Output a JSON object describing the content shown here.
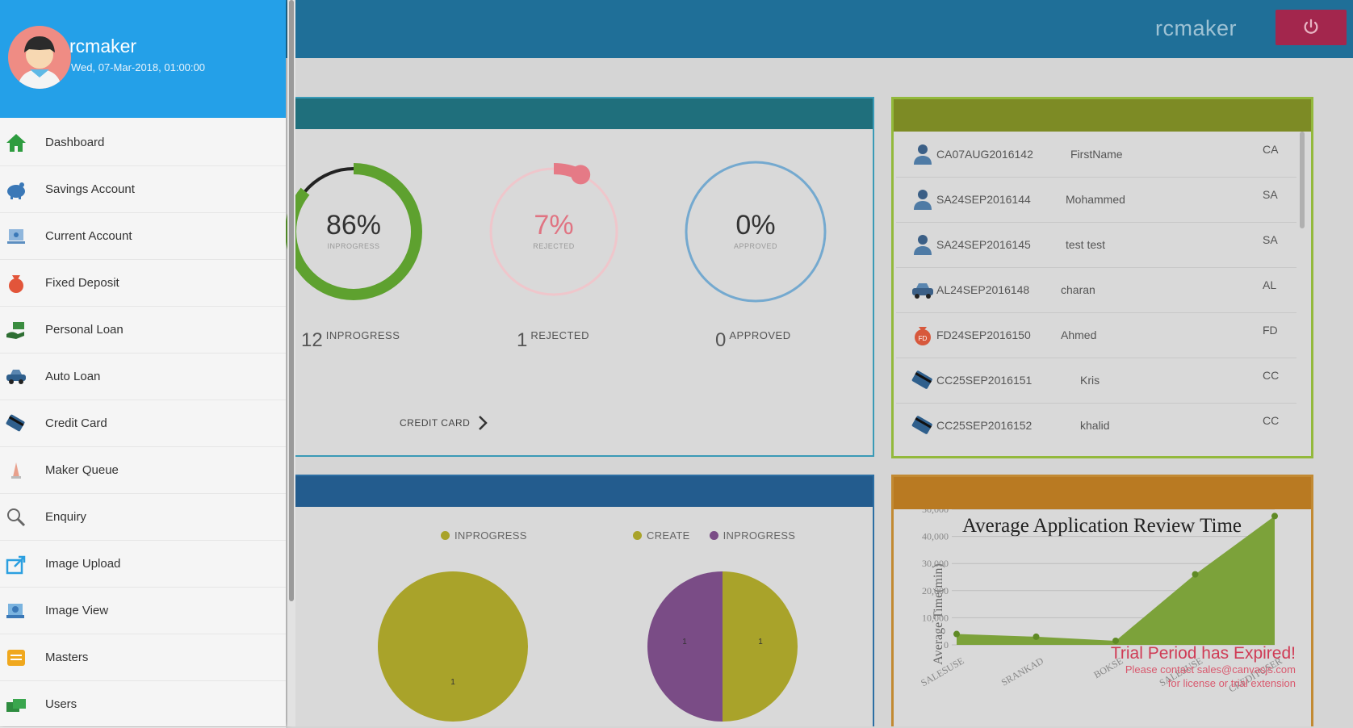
{
  "topbar": {
    "username": "rcmaker",
    "power_icon": "power-icon",
    "colors": {
      "bar": "#1f6f98",
      "power": "#a3264d"
    }
  },
  "sidebar": {
    "user": {
      "name": "rcmaker",
      "datetime": "Wed, 07-Mar-2018, 01:00:00"
    },
    "items": [
      {
        "label": "Dashboard",
        "icon": "home-icon"
      },
      {
        "label": "Savings Account",
        "icon": "piggy-bank-icon"
      },
      {
        "label": "Current Account",
        "icon": "current-account-icon"
      },
      {
        "label": "Fixed Deposit",
        "icon": "money-bag-icon"
      },
      {
        "label": "Personal Loan",
        "icon": "hand-money-icon"
      },
      {
        "label": "Auto Loan",
        "icon": "car-icon"
      },
      {
        "label": "Credit Card",
        "icon": "credit-card-icon"
      },
      {
        "label": "Maker Queue",
        "icon": "queue-icon"
      },
      {
        "label": "Enquiry",
        "icon": "magnifier-icon"
      },
      {
        "label": "Image Upload",
        "icon": "upload-icon"
      },
      {
        "label": "Image View",
        "icon": "image-view-icon"
      },
      {
        "label": "Masters",
        "icon": "masters-icon"
      },
      {
        "label": "Users",
        "icon": "users-icon"
      }
    ]
  },
  "status": {
    "gauges": [
      {
        "percent": "86%",
        "sub": "INPROGRESS",
        "count": "12",
        "count_label": "INPROGRESS",
        "value": 0.86,
        "color": "#5ea12f"
      },
      {
        "percent": "7%",
        "sub": "REJECTED",
        "count": "1",
        "count_label": "REJECTED",
        "value": 0.07,
        "color": "#e57a86"
      },
      {
        "percent": "0%",
        "sub": "APPROVED",
        "count": "0",
        "count_label": "APPROVED",
        "value": 0,
        "color": "#74a9cf"
      }
    ],
    "link_label": "CREDIT CARD"
  },
  "applications": [
    {
      "id": "CA07AUG2016142",
      "name": "FirstName",
      "type": "CA",
      "icon": "user-icon"
    },
    {
      "id": "SA24SEP2016144",
      "name": "Mohammed",
      "type": "SA",
      "icon": "user-icon"
    },
    {
      "id": "SA24SEP2016145",
      "name": "test test",
      "type": "SA",
      "icon": "user-icon"
    },
    {
      "id": "AL24SEP2016148",
      "name": "charan",
      "type": "AL",
      "icon": "car-icon"
    },
    {
      "id": "FD24SEP2016150",
      "name": "Ahmed",
      "type": "FD",
      "icon": "fd-bag-icon"
    },
    {
      "id": "CC25SEP2016151",
      "name": "Kris",
      "type": "CC",
      "icon": "credit-card-icon"
    },
    {
      "id": "CC25SEP2016152",
      "name": "khalid",
      "type": "CC",
      "icon": "credit-card-icon"
    }
  ],
  "pies": {
    "left": {
      "legend": [
        {
          "label": "INPROGRESS",
          "color": "#a9a32a"
        }
      ],
      "label": "1"
    },
    "right": {
      "legend": [
        {
          "label": "CREATE",
          "color": "#a9a32a"
        },
        {
          "label": "INPROGRESS",
          "color": "#7a4c86"
        }
      ],
      "labels": [
        "1",
        "1"
      ]
    }
  },
  "chart_data": {
    "type": "area",
    "title": "Average Application Review Time",
    "ylabel": "Average Time(min)",
    "xlabel": "",
    "categories": [
      "SALESUSE",
      "SRANKAD",
      "BOKSE",
      "SALESUSE",
      "CREDITUSER"
    ],
    "values": [
      4000,
      3000,
      1500,
      26000,
      47500
    ],
    "yticks": [
      "50,000",
      "40,000",
      "30,000",
      "20,000",
      "10,000",
      "0"
    ],
    "ylim": [
      0,
      50000
    ],
    "color": "#7ca23a",
    "watermark": {
      "title": "Trial Period has Expired!",
      "line1": "Please contact sales@canvasjs.com",
      "line2": "for license or trial extension"
    }
  }
}
